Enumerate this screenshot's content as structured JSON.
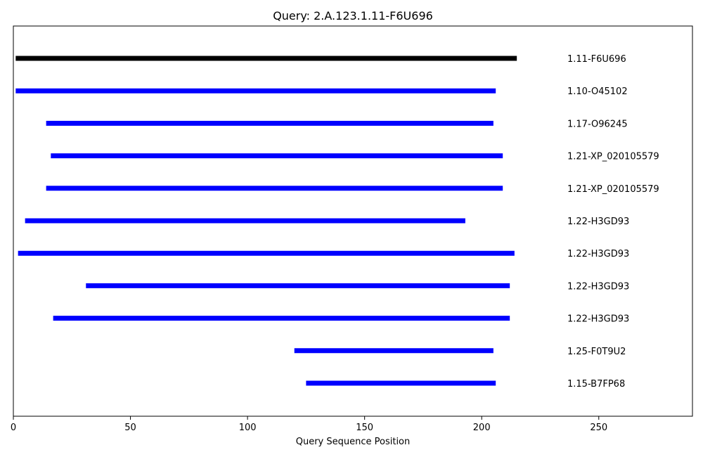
{
  "chart_data": {
    "type": "bar",
    "orientation": "horizontal-segments",
    "title": "Query: 2.A.123.1.11-F6U696",
    "xlabel": "Query Sequence Position",
    "ylabel": "",
    "xlim": [
      0,
      290
    ],
    "xticks": [
      0,
      50,
      100,
      150,
      200,
      250
    ],
    "grid": false,
    "segments": [
      {
        "label": "1.11-F6U696",
        "start": 1,
        "end": 215,
        "color": "#000000"
      },
      {
        "label": "1.10-O45102",
        "start": 1,
        "end": 206,
        "color": "#0000ff"
      },
      {
        "label": "1.17-O96245",
        "start": 14,
        "end": 205,
        "color": "#0000ff"
      },
      {
        "label": "1.21-XP_020105579",
        "start": 16,
        "end": 209,
        "color": "#0000ff"
      },
      {
        "label": "1.21-XP_020105579",
        "start": 14,
        "end": 209,
        "color": "#0000ff"
      },
      {
        "label": "1.22-H3GD93",
        "start": 5,
        "end": 193,
        "color": "#0000ff"
      },
      {
        "label": "1.22-H3GD93",
        "start": 2,
        "end": 214,
        "color": "#0000ff"
      },
      {
        "label": "1.22-H3GD93",
        "start": 31,
        "end": 212,
        "color": "#0000ff"
      },
      {
        "label": "1.22-H3GD93",
        "start": 17,
        "end": 212,
        "color": "#0000ff"
      },
      {
        "label": "1.25-F0T9U2",
        "start": 120,
        "end": 205,
        "color": "#0000ff"
      },
      {
        "label": "1.15-B7FP68",
        "start": 125,
        "end": 206,
        "color": "#0000ff"
      }
    ]
  }
}
